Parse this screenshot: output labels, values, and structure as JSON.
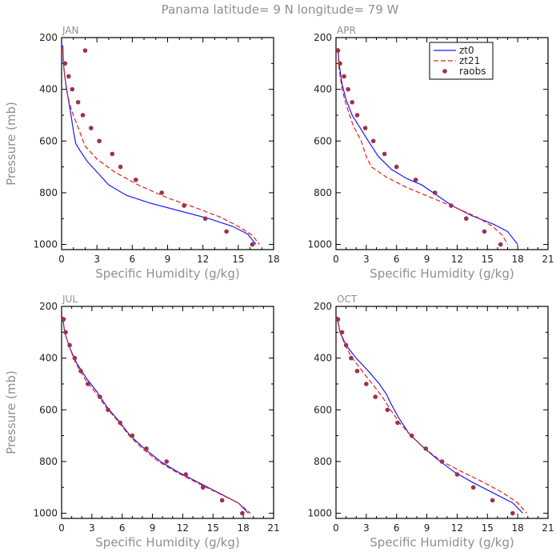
{
  "title": "Panama  latitude= 9 N longitude= 79 W",
  "colors": {
    "zt0": "#1a1aff",
    "zt21": "#e8201a",
    "raobs": "#a0304f",
    "axis": "#000000",
    "label": "#8f8f8f"
  },
  "legend": {
    "zt0": "zt0",
    "zt21": "zt21",
    "raobs": "raobs",
    "placement": "top-right of APR panel"
  },
  "chart_data": [
    {
      "type": "line",
      "panel": "JAN",
      "xlabel": "Specific Humidity (g/kg)",
      "ylabel": "Pressure (mb)",
      "xlim": [
        0,
        18
      ],
      "ylim": [
        200,
        1020
      ],
      "y_inverted": true,
      "xticks": [
        0,
        3,
        6,
        9,
        12,
        15,
        18
      ],
      "yticks": [
        200,
        400,
        600,
        800,
        1000
      ],
      "series": [
        {
          "name": "zt0",
          "style": "solid",
          "points": [
            [
              0.1,
              230
            ],
            [
              0.15,
              300
            ],
            [
              0.3,
              360
            ],
            [
              0.5,
              420
            ],
            [
              0.8,
              500
            ],
            [
              1.0,
              560
            ],
            [
              1.2,
              610
            ],
            [
              1.6,
              640
            ],
            [
              2.2,
              680
            ],
            [
              3.0,
              720
            ],
            [
              4.0,
              770
            ],
            [
              5.5,
              810
            ],
            [
              7.5,
              840
            ],
            [
              10.0,
              870
            ],
            [
              12.5,
              900
            ],
            [
              14.5,
              930
            ],
            [
              15.8,
              960
            ],
            [
              16.5,
              1000
            ]
          ]
        },
        {
          "name": "zt21",
          "style": "dashed",
          "points": [
            [
              0.1,
              240
            ],
            [
              0.2,
              320
            ],
            [
              0.4,
              400
            ],
            [
              0.7,
              460
            ],
            [
              1.0,
              500
            ],
            [
              1.5,
              560
            ],
            [
              2.0,
              620
            ],
            [
              3.0,
              670
            ],
            [
              4.5,
              720
            ],
            [
              6.5,
              770
            ],
            [
              9.0,
              820
            ],
            [
              11.5,
              860
            ],
            [
              13.5,
              895
            ],
            [
              15.0,
              930
            ],
            [
              16.2,
              965
            ],
            [
              16.8,
              1000
            ]
          ]
        },
        {
          "name": "raobs",
          "style": "marker",
          "points": [
            [
              2.0,
              250
            ],
            [
              0.3,
              300
            ],
            [
              0.6,
              350
            ],
            [
              0.9,
              400
            ],
            [
              1.4,
              450
            ],
            [
              1.8,
              500
            ],
            [
              2.5,
              550
            ],
            [
              3.2,
              600
            ],
            [
              4.3,
              650
            ],
            [
              5.0,
              700
            ],
            [
              6.3,
              750
            ],
            [
              8.5,
              800
            ],
            [
              10.4,
              850
            ],
            [
              12.2,
              900
            ],
            [
              14.0,
              950
            ],
            [
              16.2,
              1000
            ]
          ]
        }
      ]
    },
    {
      "type": "line",
      "panel": "APR",
      "xlabel": "Specific Humidity (g/kg)",
      "ylabel": "",
      "xlim": [
        0,
        21
      ],
      "ylim": [
        200,
        1020
      ],
      "y_inverted": true,
      "xticks": [
        0,
        3,
        6,
        9,
        12,
        15,
        18,
        21
      ],
      "yticks": [
        200,
        400,
        600,
        800,
        1000
      ],
      "series": [
        {
          "name": "zt0",
          "style": "solid",
          "points": [
            [
              0.2,
              240
            ],
            [
              0.3,
              300
            ],
            [
              0.6,
              380
            ],
            [
              1.0,
              440
            ],
            [
              1.6,
              500
            ],
            [
              2.4,
              550
            ],
            [
              3.2,
              600
            ],
            [
              4.2,
              660
            ],
            [
              5.5,
              710
            ],
            [
              7.0,
              745
            ],
            [
              8.5,
              770
            ],
            [
              10.0,
              810
            ],
            [
              11.5,
              850
            ],
            [
              13.5,
              890
            ],
            [
              15.5,
              920
            ],
            [
              17.0,
              950
            ],
            [
              18.0,
              1000
            ]
          ]
        },
        {
          "name": "zt21",
          "style": "dashed",
          "points": [
            [
              0.2,
              250
            ],
            [
              0.3,
              320
            ],
            [
              0.6,
              400
            ],
            [
              1.0,
              460
            ],
            [
              1.7,
              540
            ],
            [
              2.5,
              600
            ],
            [
              3.0,
              660
            ],
            [
              3.5,
              700
            ],
            [
              5.0,
              740
            ],
            [
              7.0,
              780
            ],
            [
              9.5,
              820
            ],
            [
              12.0,
              860
            ],
            [
              14.0,
              895
            ],
            [
              15.5,
              930
            ],
            [
              16.5,
              965
            ],
            [
              17.0,
              1000
            ]
          ]
        },
        {
          "name": "raobs",
          "style": "marker",
          "points": [
            [
              0.2,
              250
            ],
            [
              0.4,
              300
            ],
            [
              0.8,
              350
            ],
            [
              1.2,
              400
            ],
            [
              1.6,
              450
            ],
            [
              2.1,
              500
            ],
            [
              2.9,
              550
            ],
            [
              3.7,
              600
            ],
            [
              4.8,
              650
            ],
            [
              6.0,
              700
            ],
            [
              7.9,
              750
            ],
            [
              9.8,
              800
            ],
            [
              11.4,
              850
            ],
            [
              12.9,
              900
            ],
            [
              14.7,
              950
            ],
            [
              16.3,
              1000
            ]
          ]
        }
      ]
    },
    {
      "type": "line",
      "panel": "JUL",
      "xlabel": "Specific Humidity (g/kg)",
      "ylabel": "Pressure (mb)",
      "xlim": [
        0,
        21
      ],
      "ylim": [
        200,
        1020
      ],
      "y_inverted": true,
      "xticks": [
        0,
        3,
        6,
        9,
        12,
        15,
        18,
        21
      ],
      "yticks": [
        200,
        400,
        600,
        800,
        1000
      ],
      "series": [
        {
          "name": "zt0",
          "style": "solid",
          "points": [
            [
              0.1,
              240
            ],
            [
              0.3,
              300
            ],
            [
              0.8,
              360
            ],
            [
              1.5,
              420
            ],
            [
              2.5,
              480
            ],
            [
              3.5,
              530
            ],
            [
              4.5,
              590
            ],
            [
              5.6,
              640
            ],
            [
              6.8,
              700
            ],
            [
              8.2,
              750
            ],
            [
              9.8,
              800
            ],
            [
              11.5,
              840
            ],
            [
              13.5,
              880
            ],
            [
              15.5,
              920
            ],
            [
              17.5,
              960
            ],
            [
              18.5,
              1000
            ]
          ]
        },
        {
          "name": "zt21",
          "style": "dashed",
          "points": [
            [
              0.1,
              240
            ],
            [
              0.3,
              300
            ],
            [
              0.8,
              360
            ],
            [
              1.4,
              420
            ],
            [
              2.3,
              480
            ],
            [
              3.3,
              530
            ],
            [
              4.4,
              590
            ],
            [
              5.5,
              640
            ],
            [
              6.7,
              700
            ],
            [
              8.0,
              750
            ],
            [
              9.6,
              800
            ],
            [
              11.3,
              840
            ],
            [
              13.3,
              880
            ],
            [
              15.4,
              920
            ],
            [
              17.5,
              960
            ],
            [
              18.7,
              1000
            ]
          ]
        },
        {
          "name": "raobs",
          "style": "marker",
          "points": [
            [
              0.2,
              250
            ],
            [
              0.4,
              300
            ],
            [
              0.8,
              350
            ],
            [
              1.3,
              400
            ],
            [
              1.9,
              450
            ],
            [
              2.6,
              500
            ],
            [
              3.8,
              550
            ],
            [
              4.6,
              600
            ],
            [
              5.8,
              650
            ],
            [
              7.0,
              700
            ],
            [
              8.4,
              750
            ],
            [
              10.4,
              800
            ],
            [
              12.3,
              850
            ],
            [
              14.0,
              900
            ],
            [
              15.9,
              950
            ],
            [
              17.9,
              1000
            ]
          ]
        }
      ]
    },
    {
      "type": "line",
      "panel": "OCT",
      "xlabel": "Specific Humidity (g/kg)",
      "ylabel": "",
      "xlim": [
        0,
        21
      ],
      "ylim": [
        200,
        1020
      ],
      "y_inverted": true,
      "xticks": [
        0,
        3,
        6,
        9,
        12,
        15,
        18,
        21
      ],
      "yticks": [
        200,
        400,
        600,
        800,
        1000
      ],
      "series": [
        {
          "name": "zt0",
          "style": "solid",
          "points": [
            [
              0.1,
              240
            ],
            [
              0.4,
              300
            ],
            [
              1.0,
              350
            ],
            [
              2.0,
              400
            ],
            [
              3.2,
              450
            ],
            [
              4.3,
              500
            ],
            [
              5.0,
              540
            ],
            [
              5.5,
              580
            ],
            [
              6.2,
              630
            ],
            [
              7.2,
              690
            ],
            [
              8.5,
              740
            ],
            [
              10.0,
              790
            ],
            [
              11.7,
              840
            ],
            [
              13.5,
              880
            ],
            [
              15.5,
              920
            ],
            [
              17.5,
              960
            ],
            [
              18.5,
              1000
            ]
          ]
        },
        {
          "name": "zt21",
          "style": "dashed",
          "points": [
            [
              0.1,
              240
            ],
            [
              0.4,
              300
            ],
            [
              0.9,
              350
            ],
            [
              1.6,
              400
            ],
            [
              2.6,
              450
            ],
            [
              3.6,
              500
            ],
            [
              4.6,
              550
            ],
            [
              5.4,
              600
            ],
            [
              6.3,
              650
            ],
            [
              7.4,
              700
            ],
            [
              8.8,
              750
            ],
            [
              10.5,
              800
            ],
            [
              12.5,
              840
            ],
            [
              14.6,
              880
            ],
            [
              16.5,
              920
            ],
            [
              18.0,
              960
            ],
            [
              18.9,
              1000
            ]
          ]
        },
        {
          "name": "raobs",
          "style": "marker",
          "points": [
            [
              0.2,
              250
            ],
            [
              0.6,
              300
            ],
            [
              1.0,
              350
            ],
            [
              1.5,
              400
            ],
            [
              2.1,
              450
            ],
            [
              3.0,
              500
            ],
            [
              3.9,
              550
            ],
            [
              5.1,
              600
            ],
            [
              6.1,
              650
            ],
            [
              7.5,
              700
            ],
            [
              8.9,
              750
            ],
            [
              10.5,
              800
            ],
            [
              12.0,
              850
            ],
            [
              13.6,
              900
            ],
            [
              15.5,
              950
            ],
            [
              17.5,
              1000
            ]
          ]
        }
      ]
    }
  ]
}
